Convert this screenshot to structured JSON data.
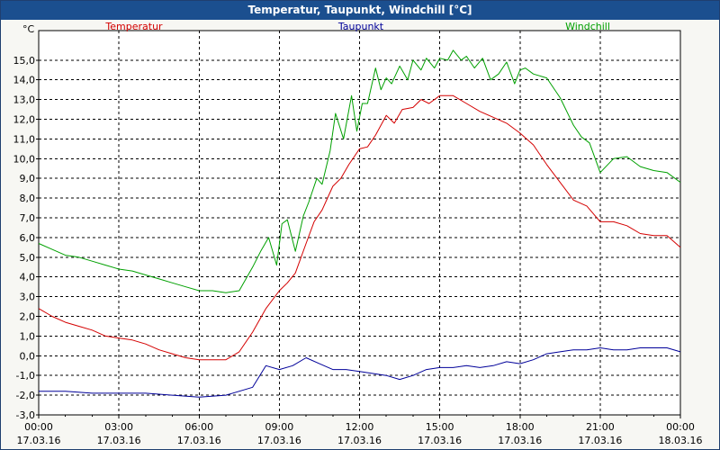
{
  "window": {
    "title": "Temperatur, Taupunkt, Windchill [°C]"
  },
  "chart_data": {
    "type": "line",
    "title": "Temperatur, Taupunkt, Windchill [°C]",
    "ylabel": "°C",
    "xlabel": "",
    "ylim": [
      -3.0,
      16.5
    ],
    "xlim": [
      0,
      24
    ],
    "grid": true,
    "legend": "top",
    "y_ticks": [
      "-3,0",
      "-2,0",
      "-1,0",
      "0,0",
      "1,0",
      "2,0",
      "3,0",
      "4,0",
      "5,0",
      "6,0",
      "7,0",
      "8,0",
      "9,0",
      "10,0",
      "11,0",
      "12,0",
      "13,0",
      "14,0",
      "15,0"
    ],
    "y_tick_values": [
      -3,
      -2,
      -1,
      0,
      1,
      2,
      3,
      4,
      5,
      6,
      7,
      8,
      9,
      10,
      11,
      12,
      13,
      14,
      15
    ],
    "x_ticks": [
      {
        "h": 0,
        "time": "00:00",
        "date": "17.03.16"
      },
      {
        "h": 3,
        "time": "03:00",
        "date": "17.03.16"
      },
      {
        "h": 6,
        "time": "06:00",
        "date": "17.03.16"
      },
      {
        "h": 9,
        "time": "09:00",
        "date": "17.03.16"
      },
      {
        "h": 12,
        "time": "12:00",
        "date": "17.03.16"
      },
      {
        "h": 15,
        "time": "15:00",
        "date": "17.03.16"
      },
      {
        "h": 18,
        "time": "18:00",
        "date": "17.03.16"
      },
      {
        "h": 21,
        "time": "21:00",
        "date": "17.03.16"
      },
      {
        "h": 24,
        "time": "00:00",
        "date": "18.03.16"
      }
    ],
    "series": [
      {
        "name": "Temperatur",
        "color": "#d40000",
        "x": [
          0,
          0.5,
          1,
          1.5,
          2,
          2.5,
          3,
          3.5,
          4,
          4.5,
          5,
          5.5,
          6,
          6.5,
          7,
          7.5,
          8,
          8.5,
          9,
          9.3,
          9.6,
          10,
          10.3,
          10.6,
          11,
          11.3,
          11.6,
          12,
          12.3,
          12.6,
          13,
          13.3,
          13.6,
          14,
          14.3,
          14.6,
          15,
          15.5,
          16,
          16.5,
          17,
          17.5,
          18,
          18.5,
          19,
          19.5,
          20,
          20.5,
          21,
          21.5,
          22,
          22.5,
          23,
          23.5,
          24
        ],
        "values": [
          2.4,
          2.0,
          1.7,
          1.5,
          1.3,
          1.0,
          0.9,
          0.8,
          0.6,
          0.3,
          0.1,
          -0.1,
          -0.2,
          -0.2,
          -0.2,
          0.2,
          1.2,
          2.4,
          3.3,
          3.7,
          4.2,
          5.7,
          6.8,
          7.4,
          8.6,
          9.0,
          9.7,
          10.5,
          10.6,
          11.2,
          12.2,
          11.8,
          12.5,
          12.6,
          13.0,
          12.8,
          13.2,
          13.2,
          12.8,
          12.4,
          12.1,
          11.8,
          11.3,
          10.7,
          9.7,
          8.8,
          7.9,
          7.6,
          6.8,
          6.8,
          6.6,
          6.2,
          6.1,
          6.1,
          5.5
        ]
      },
      {
        "name": "Taupunkt",
        "color": "#000099",
        "x": [
          0,
          1,
          2,
          3,
          4,
          5,
          6,
          7,
          8,
          8.5,
          9,
          9.5,
          10,
          10.5,
          11,
          11.5,
          12,
          12.5,
          13,
          13.5,
          14,
          14.5,
          15,
          15.5,
          16,
          16.5,
          17,
          17.5,
          18,
          18.5,
          19,
          19.5,
          20,
          20.5,
          21,
          21.5,
          22,
          22.5,
          23,
          23.5,
          24
        ],
        "values": [
          -1.8,
          -1.8,
          -1.9,
          -1.9,
          -1.9,
          -2.0,
          -2.1,
          -2.0,
          -1.6,
          -0.5,
          -0.7,
          -0.5,
          -0.1,
          -0.4,
          -0.7,
          -0.7,
          -0.8,
          -0.9,
          -1.0,
          -1.2,
          -1.0,
          -0.7,
          -0.6,
          -0.6,
          -0.5,
          -0.6,
          -0.5,
          -0.3,
          -0.4,
          -0.2,
          0.1,
          0.2,
          0.3,
          0.3,
          0.4,
          0.3,
          0.3,
          0.4,
          0.4,
          0.4,
          0.2
        ]
      },
      {
        "name": "Windchill",
        "color": "#00a000",
        "x": [
          0,
          0.5,
          1,
          1.5,
          2,
          2.5,
          3,
          3.5,
          4,
          4.5,
          5,
          5.5,
          6,
          6.5,
          7,
          7.5,
          8,
          8.3,
          8.6,
          8.9,
          9.1,
          9.3,
          9.6,
          9.9,
          10.1,
          10.4,
          10.6,
          10.9,
          11.1,
          11.4,
          11.7,
          11.9,
          12.1,
          12.3,
          12.6,
          12.8,
          13.0,
          13.2,
          13.5,
          13.8,
          14.0,
          14.3,
          14.5,
          14.8,
          15.0,
          15.3,
          15.5,
          15.8,
          16.0,
          16.3,
          16.6,
          16.9,
          17.2,
          17.5,
          17.8,
          18.0,
          18.2,
          18.5,
          19,
          19.5,
          20,
          20.3,
          20.6,
          21,
          21.5,
          22,
          22.5,
          23,
          23.5,
          24
        ],
        "values": [
          5.7,
          5.4,
          5.1,
          5.0,
          4.8,
          4.6,
          4.4,
          4.3,
          4.1,
          3.9,
          3.7,
          3.5,
          3.3,
          3.3,
          3.2,
          3.3,
          4.5,
          5.3,
          6.0,
          4.6,
          6.7,
          6.9,
          5.3,
          7.1,
          7.8,
          9.0,
          8.7,
          10.4,
          12.3,
          11.0,
          13.2,
          11.4,
          12.8,
          12.8,
          14.6,
          13.5,
          14.1,
          13.8,
          14.7,
          14.0,
          15.0,
          14.5,
          15.1,
          14.6,
          15.1,
          15.0,
          15.5,
          15.0,
          15.2,
          14.6,
          15.1,
          14.0,
          14.3,
          14.9,
          13.8,
          14.5,
          14.6,
          14.3,
          14.1,
          13.1,
          11.7,
          11.1,
          10.8,
          9.3,
          10.0,
          10.1,
          9.6,
          9.4,
          9.3,
          8.8
        ]
      }
    ]
  }
}
